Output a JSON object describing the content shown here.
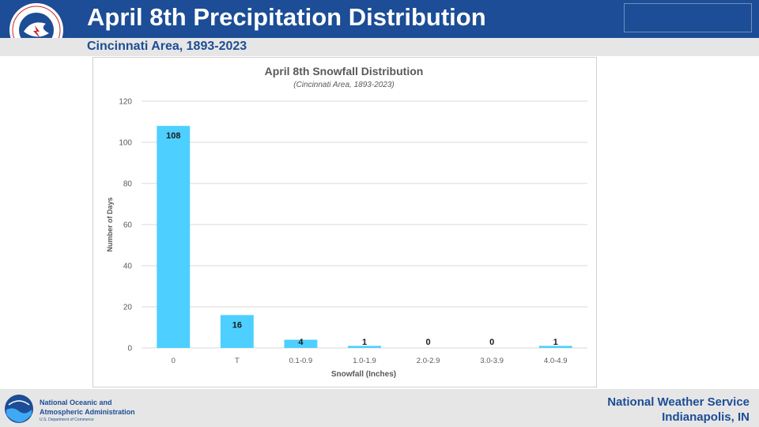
{
  "header": {
    "title": "April 8th Precipitation Distribution",
    "subtitle": "Cincinnati Area, 1893-2023"
  },
  "footer": {
    "noaa_line1": "National Oceanic and",
    "noaa_line2": "Atmospheric Administration",
    "noaa_line3": "U.S. Department of Commerce",
    "nws_name": "National Weather Service",
    "nws_location": "Indianapolis, IN"
  },
  "colors": {
    "header_bg": "#1c4d96",
    "bar": "#4dcfff",
    "grid": "#d9d9d9"
  },
  "chart_data": {
    "type": "bar",
    "title": "April 8th Snowfall Distribution",
    "subtitle": "(Cincinnati Area, 1893-2023)",
    "xlabel": "Snowfall (Inches)",
    "ylabel": "Number of Days",
    "categories": [
      "0",
      "T",
      "0.1-0.9",
      "1.0-1.9",
      "2.0-2.9",
      "3.0-3.9",
      "4.0-4.9"
    ],
    "values": [
      108,
      16,
      4,
      1,
      0,
      0,
      1
    ],
    "data_labels": [
      "108",
      "16",
      "4",
      "1",
      "0",
      "0",
      "1"
    ],
    "ylim": [
      0,
      120
    ],
    "yticks": [
      0,
      20,
      40,
      60,
      80,
      100,
      120
    ],
    "grid": true,
    "legend": "none"
  }
}
